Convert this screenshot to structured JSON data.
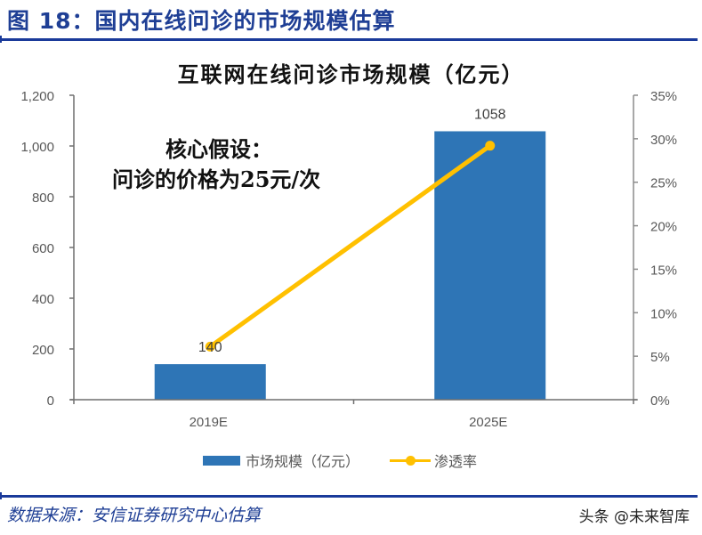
{
  "figure": {
    "title": "图 18：国内在线问诊的市场规模估算",
    "source": "数据来源：安信证券研究中心估算",
    "watermark": "头条 @未来智库"
  },
  "annotation": {
    "line1": "核心假设：",
    "line2": "问诊的价格为25元/次"
  },
  "colors": {
    "bar": "#2e75b6",
    "line": "#ffc000",
    "title_blue": "#1f3f95",
    "axis": "#7f7f7f",
    "tick_text": "#595959"
  },
  "chart_data": {
    "type": "bar+line",
    "title": "互联网在线问诊市场规模（亿元）",
    "categories": [
      "2019E",
      "2025E"
    ],
    "series": [
      {
        "name": "市场规模（亿元）",
        "type": "bar",
        "axis": "left",
        "values": [
          140,
          1058
        ],
        "data_labels": [
          "140",
          "1058"
        ]
      },
      {
        "name": "渗透率",
        "type": "line",
        "axis": "right",
        "values": [
          0.061,
          0.292
        ]
      }
    ],
    "left_axis": {
      "ylim": [
        0,
        1200
      ],
      "ticks": [
        "0",
        "200",
        "400",
        "600",
        "800",
        "1,000",
        "1,200"
      ]
    },
    "right_axis": {
      "ylim": [
        0,
        0.35
      ],
      "ticks": [
        "0%",
        "5%",
        "10%",
        "15%",
        "20%",
        "25%",
        "30%",
        "35%"
      ]
    },
    "xlabel": "",
    "ylabel": "",
    "grid": false,
    "legend_position": "bottom",
    "legend": [
      "市场规模（亿元）",
      "渗透率"
    ]
  }
}
